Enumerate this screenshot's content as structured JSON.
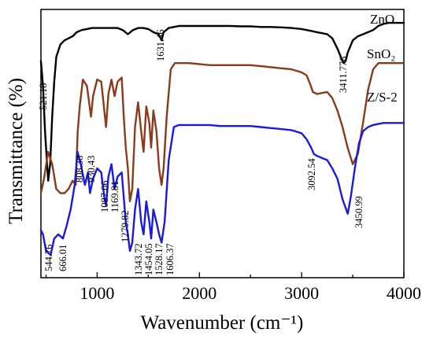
{
  "chart_data": {
    "type": "line",
    "xlabel": "Wavenumber (cm⁻¹)",
    "ylabel": "Transmittance (%)",
    "xlim": [
      450,
      4000
    ],
    "xticks": [
      1000,
      2000,
      3000,
      4000
    ],
    "xtick_labels": [
      "1000",
      "2000",
      "3000",
      "4000"
    ],
    "y_tick_labels_shown": false,
    "grid": false,
    "series": [
      {
        "name": "ZnO",
        "color": "#000000",
        "x": [
          450,
          470,
          490,
          510,
          521,
          540,
          560,
          580,
          600,
          640,
          680,
          720,
          760,
          800,
          850,
          900,
          950,
          1000,
          1050,
          1100,
          1150,
          1200,
          1250,
          1300,
          1350,
          1400,
          1450,
          1500,
          1550,
          1600,
          1631,
          1650,
          1700,
          1750,
          1800,
          1900,
          2000,
          2100,
          2200,
          2300,
          2400,
          2500,
          2600,
          2700,
          2800,
          2900,
          3000,
          3050,
          3100,
          3150,
          3200,
          3250,
          3300,
          3350,
          3400,
          3412,
          3430,
          3450,
          3500,
          3550,
          3600,
          3650,
          3700,
          3750,
          3800,
          3850,
          3900,
          3950,
          4000
        ],
        "y": [
          72,
          60,
          38,
          22,
          14,
          22,
          45,
          62,
          74,
          80,
          82,
          83,
          84,
          86,
          87,
          87.5,
          88,
          88,
          88,
          88,
          88,
          88,
          87,
          85,
          87,
          88,
          88,
          87.5,
          86,
          85,
          82,
          86,
          88,
          88.5,
          89,
          89,
          89,
          89,
          89,
          89,
          88.8,
          88.8,
          88.5,
          88.5,
          88.3,
          88,
          87.5,
          87,
          86.5,
          86,
          85.5,
          85,
          83,
          78,
          72,
          71,
          72,
          76,
          82,
          84,
          85,
          86,
          87,
          89,
          90,
          90.5,
          90.5,
          90.5,
          90.5
        ]
      },
      {
        "name": "SnO₂",
        "color": "#8B3A1A",
        "x": [
          450,
          480,
          520,
          560,
          600,
          640,
          680,
          720,
          760,
          790,
          810,
          830,
          860,
          900,
          940,
          960,
          1000,
          1040,
          1070,
          1087,
          1110,
          1140,
          1170,
          1200,
          1240,
          1260,
          1280,
          1300,
          1320,
          1343,
          1370,
          1400,
          1430,
          1454,
          1480,
          1510,
          1528,
          1550,
          1580,
          1606,
          1630,
          1650,
          1680,
          1720,
          1760,
          1800,
          1900,
          2000,
          2100,
          2200,
          2300,
          2400,
          2500,
          2600,
          2700,
          2800,
          2900,
          3000,
          3050,
          3090,
          3110,
          3150,
          3200,
          3250,
          3300,
          3350,
          3400,
          3450,
          3500,
          3550,
          3600,
          3650,
          3700,
          3750,
          3800,
          3900,
          4000
        ],
        "y": [
          8,
          15,
          28,
          22,
          10,
          8,
          8,
          10,
          14,
          12,
          38,
          50,
          63,
          60,
          45,
          55,
          63,
          62,
          48,
          40,
          56,
          63,
          55,
          62,
          64,
          45,
          30,
          20,
          4,
          10,
          40,
          52,
          38,
          28,
          50,
          42,
          30,
          48,
          38,
          20,
          12,
          20,
          45,
          68,
          71,
          71,
          71,
          70.5,
          70,
          70,
          70,
          70,
          70,
          69.5,
          69,
          68.5,
          68,
          66.5,
          65,
          60,
          57,
          56,
          56.5,
          57,
          54,
          48,
          40,
          30,
          22,
          27,
          42,
          58,
          68,
          71,
          71,
          71,
          71
        ]
      },
      {
        "name": "Z/S-2",
        "color": "#1A1ADC",
        "x": [
          450,
          470,
          500,
          545,
          580,
          620,
          666,
          700,
          740,
          780,
          808,
          840,
          880,
          910,
          930,
          960,
          1000,
          1040,
          1070,
          1087,
          1110,
          1140,
          1170,
          1200,
          1240,
          1260,
          1280,
          1300,
          1320,
          1343,
          1370,
          1400,
          1430,
          1454,
          1480,
          1510,
          1528,
          1550,
          1580,
          1606,
          1630,
          1660,
          1700,
          1750,
          1800,
          1900,
          2000,
          2100,
          2200,
          2300,
          2400,
          2500,
          2600,
          2700,
          2800,
          2900,
          3000,
          3050,
          3093,
          3120,
          3150,
          3200,
          3250,
          3300,
          3350,
          3400,
          3451,
          3480,
          3520,
          3560,
          3600,
          3650,
          3700,
          3750,
          3800,
          3900,
          4000
        ],
        "y": [
          -10,
          -12,
          -20,
          -22,
          -14,
          -12,
          -14,
          -8,
          0,
          12,
          28,
          22,
          12,
          18,
          8,
          15,
          20,
          18,
          6,
          2,
          16,
          22,
          10,
          16,
          18,
          6,
          -6,
          -12,
          -20,
          -16,
          0,
          10,
          -6,
          -12,
          4,
          -6,
          -14,
          0,
          -6,
          -12,
          -16,
          -6,
          24,
          40,
          41,
          41,
          41,
          41,
          40.5,
          40.5,
          40.5,
          40.5,
          40,
          39.5,
          39,
          38.5,
          37,
          34,
          30,
          27,
          26,
          25,
          24,
          20,
          15,
          5,
          -2,
          6,
          20,
          32,
          38,
          40,
          41,
          41.5,
          42,
          42,
          42
        ]
      }
    ],
    "annotations": [
      "521.18",
      "1631.46",
      "3411.776",
      "808.38",
      "930.43",
      "1087.06",
      "1169.81",
      "1279.82",
      "1343.72",
      "1454.05",
      "1528.17",
      "1606.37",
      "544.76",
      "666.01",
      "3092.54",
      "3450.99"
    ]
  }
}
